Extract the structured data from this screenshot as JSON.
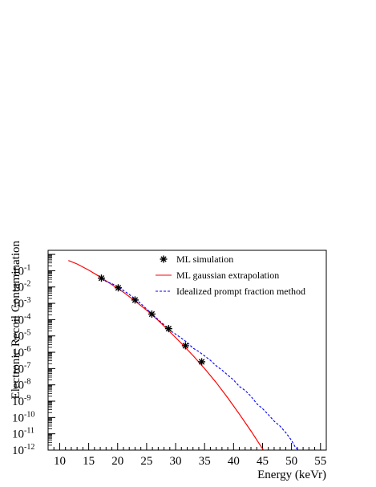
{
  "chart_data": {
    "type": "line",
    "xlabel": "Energy (keVr)",
    "ylabel": "Electronic Recoil Contamination",
    "xlim": [
      8,
      56
    ],
    "ylim_log10": [
      -12,
      0.25
    ],
    "y_scale": "log",
    "grid": false,
    "legend_placement": "top-right",
    "x_ticks": [
      10,
      15,
      20,
      25,
      30,
      35,
      40,
      45,
      50,
      55
    ],
    "y_ticks": [
      {
        "exp": -12,
        "label": "10",
        "sup": "-12"
      },
      {
        "exp": -11,
        "label": "10",
        "sup": "-11"
      },
      {
        "exp": -10,
        "label": "10",
        "sup": "-10"
      },
      {
        "exp": -9,
        "label": "10",
        "sup": "-9"
      },
      {
        "exp": -8,
        "label": "10",
        "sup": "-8"
      },
      {
        "exp": -7,
        "label": "10",
        "sup": "-7"
      },
      {
        "exp": -6,
        "label": "10",
        "sup": "-6"
      },
      {
        "exp": -5,
        "label": "10",
        "sup": "-5"
      },
      {
        "exp": -4,
        "label": "10",
        "sup": "-4"
      },
      {
        "exp": -3,
        "label": "10",
        "sup": "-3"
      },
      {
        "exp": -2,
        "label": "10",
        "sup": "-2"
      },
      {
        "exp": -1,
        "label": "10",
        "sup": "-1"
      }
    ],
    "series": [
      {
        "name": "ML simulation",
        "style": "markers",
        "marker": "asterisk",
        "color": "#000000",
        "x": [
          17.2,
          20.1,
          23.0,
          25.9,
          28.8,
          31.7,
          34.5
        ],
        "y": [
          0.035,
          0.0089,
          0.0016,
          0.00022,
          2.8e-05,
          2.5e-06,
          2.6e-07
        ]
      },
      {
        "name": "ML gaussian extrapolation",
        "style": "solid",
        "color": "#ff0000",
        "x": [
          11.5,
          13,
          15,
          17,
          19,
          21,
          23,
          25,
          27,
          29,
          31,
          33,
          35,
          37,
          39,
          41,
          43,
          45,
          46
        ],
        "y": [
          0.42,
          0.26,
          0.11,
          0.041,
          0.014,
          0.0048,
          0.0014,
          0.00038,
          8.9e-05,
          1.8e-05,
          3.5e-06,
          6.3e-07,
          1e-07,
          1.4e-08,
          1.6e-09,
          1.6e-10,
          1.5e-11,
          1.2e-12,
          4e-13
        ]
      },
      {
        "name": "Idealized prompt fraction method",
        "style": "dashed",
        "color": "#0000ff",
        "x": [
          17.2,
          18,
          19,
          20,
          21,
          22,
          23,
          24,
          25,
          26,
          27,
          28,
          29,
          30,
          31,
          32,
          33,
          34,
          35,
          36,
          37,
          38,
          39,
          40,
          41,
          42,
          43,
          44,
          45,
          46,
          47,
          48,
          49,
          50,
          50.7,
          51.3
        ],
        "y": [
          0.035,
          0.022,
          0.016,
          0.011,
          0.0062,
          0.0035,
          0.0019,
          0.00095,
          0.00045,
          0.00021,
          0.0001,
          4.8e-05,
          2.2e-05,
          1.3e-05,
          7.2e-06,
          4e-06,
          1.8e-06,
          1.1e-06,
          6e-07,
          3.2e-07,
          1.5e-07,
          8e-08,
          4e-08,
          2e-08,
          8e-09,
          4.5e-09,
          2e-09,
          7e-10,
          3.5e-10,
          1.5e-10,
          6e-11,
          3e-11,
          1.2e-11,
          4e-12,
          1.4e-12,
          1e-12
        ]
      }
    ]
  }
}
